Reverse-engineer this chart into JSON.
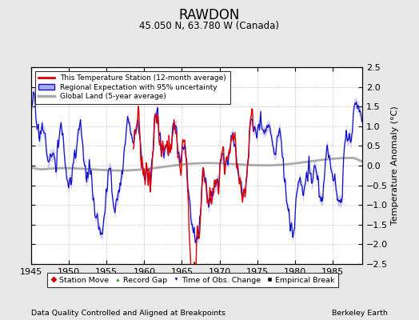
{
  "title": "RAWDON",
  "subtitle": "45.050 N, 63.780 W (Canada)",
  "ylabel": "Temperature Anomaly (°C)",
  "xlabel_bottom": "Data Quality Controlled and Aligned at Breakpoints",
  "xlabel_right": "Berkeley Earth",
  "year_start": 1945,
  "year_end": 1989,
  "ylim": [
    -2.5,
    2.5
  ],
  "yticks": [
    -2.5,
    -2,
    -1.5,
    -1,
    -0.5,
    0,
    0.5,
    1,
    1.5,
    2,
    2.5
  ],
  "xticks": [
    1945,
    1950,
    1955,
    1960,
    1965,
    1970,
    1975,
    1980,
    1985
  ],
  "background_color": "#e8e8e8",
  "plot_bg_color": "#ffffff",
  "line_color_station": "#dd0000",
  "line_color_regional": "#1111cc",
  "fill_color_regional": "#aaaaee",
  "line_color_global": "#aaaaaa",
  "station_start_year": 1958.5,
  "station_end_year": 1974.5,
  "seed": 17
}
